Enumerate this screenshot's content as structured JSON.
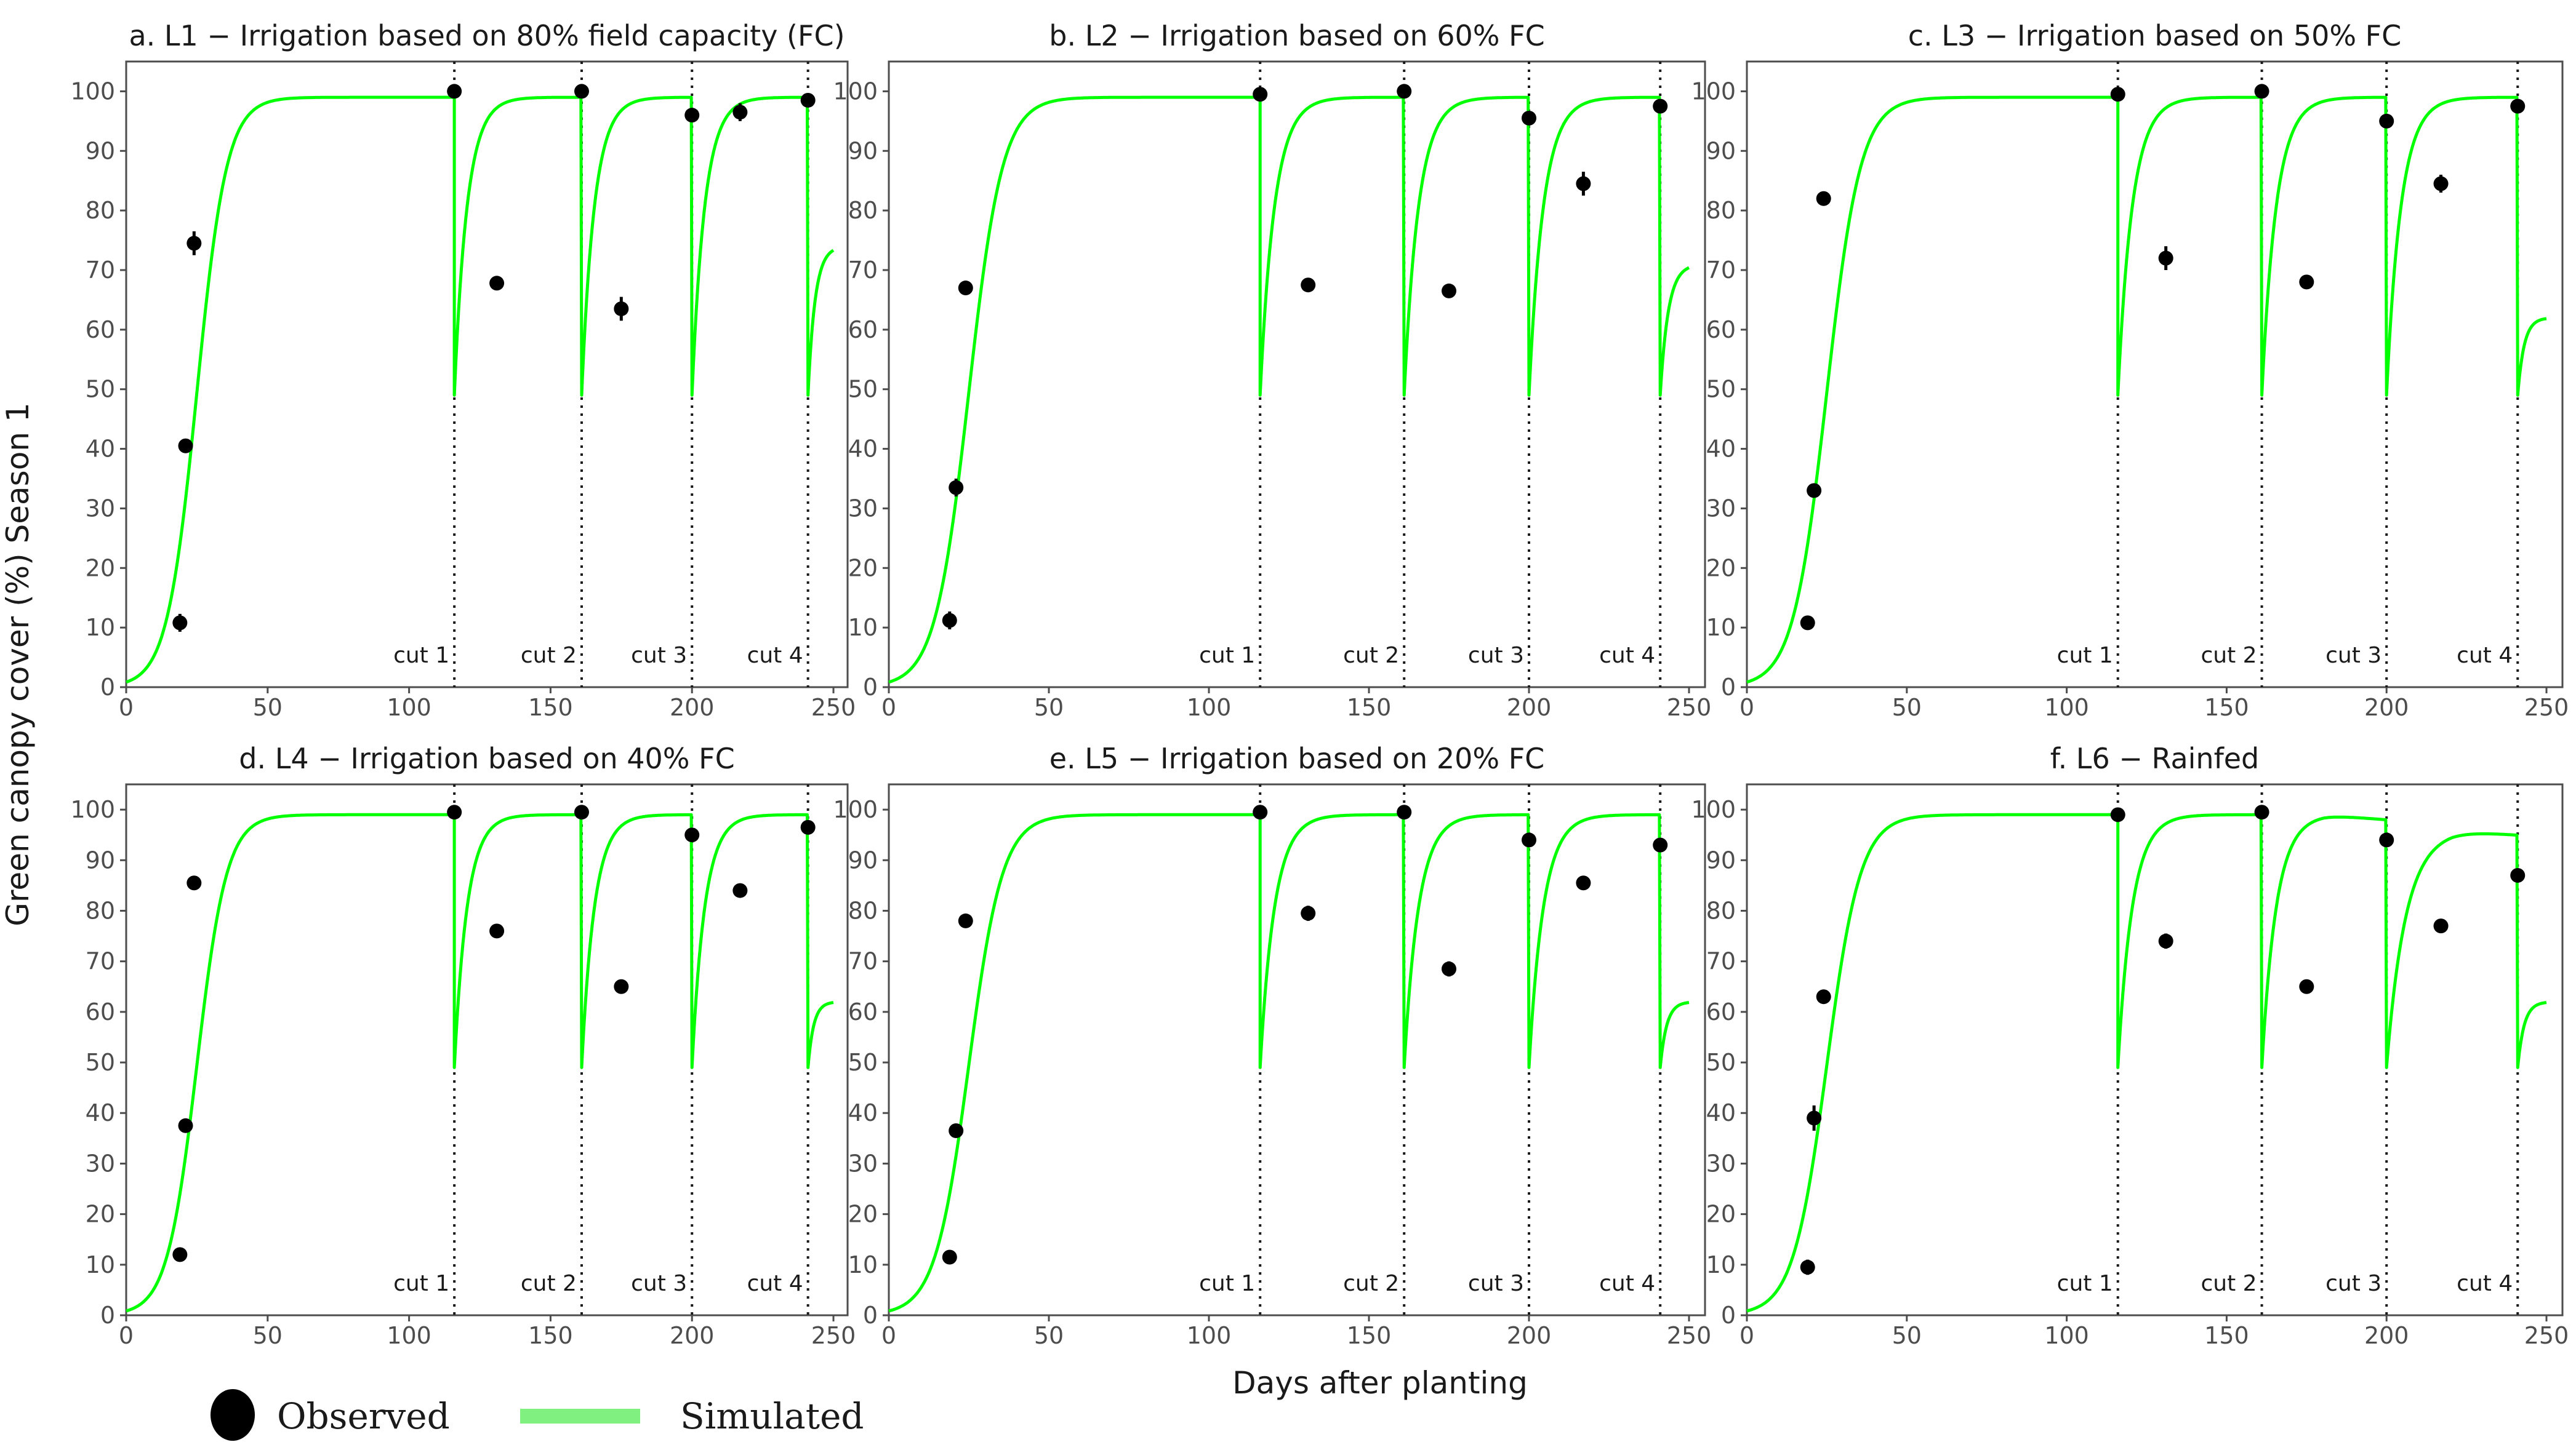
{
  "figure": {
    "ylabel": "Green canopy cover (%) Season 1",
    "xlabel": "Days after planting",
    "legend": {
      "observed_label": "Observed",
      "simulated_label": "Simulated"
    },
    "colors": {
      "simulated": "#00ff00",
      "observed": "#000000",
      "panel_border": "#4d4d4d",
      "legend_simulated": "#80f080"
    }
  },
  "chart_data": [
    {
      "type": "line+scatter",
      "title": "a. L1 − Irrigation based on 80% field capacity (FC)",
      "xlim": [
        0,
        255
      ],
      "ylim": [
        0,
        105
      ],
      "xticks": [
        0,
        50,
        100,
        150,
        200,
        250
      ],
      "yticks": [
        0,
        10,
        20,
        30,
        40,
        50,
        60,
        70,
        80,
        90,
        100
      ],
      "cuts": [
        {
          "x": 116,
          "label": "cut 1"
        },
        {
          "x": 161,
          "label": "cut 2"
        },
        {
          "x": 200,
          "label": "cut 3"
        },
        {
          "x": 241,
          "label": "cut 4"
        }
      ],
      "observed": [
        {
          "x": 19,
          "y": 10.8,
          "err": 1.5
        },
        {
          "x": 21,
          "y": 40.5,
          "err": 1.0
        },
        {
          "x": 24,
          "y": 74.5,
          "err": 2.0
        },
        {
          "x": 116,
          "y": 100,
          "err": 0.5
        },
        {
          "x": 131,
          "y": 67.8,
          "err": 0.5
        },
        {
          "x": 161,
          "y": 100,
          "err": 0.5
        },
        {
          "x": 175,
          "y": 63.5,
          "err": 2.0
        },
        {
          "x": 200,
          "y": 96,
          "err": 0.5
        },
        {
          "x": 217,
          "y": 96.5,
          "err": 1.5
        },
        {
          "x": 241,
          "y": 98.5,
          "err": 0.5
        }
      ],
      "simulated": {
        "initial": {
          "max": 99,
          "midpoint": 25,
          "rate": 0.19
        },
        "regrowth": [
          {
            "start": 116,
            "end": 161,
            "min": 49,
            "max": 99,
            "tau": 4.5
          },
          {
            "start": 161,
            "end": 200,
            "min": 49,
            "max": 99,
            "tau": 4.5
          },
          {
            "start": 200,
            "end": 241,
            "min": 49,
            "max": 99,
            "tau": 4.5
          },
          {
            "start": 241,
            "end": 250,
            "min": 49,
            "max": 74,
            "tau": 2.5
          }
        ]
      }
    },
    {
      "type": "line+scatter",
      "title": "b. L2 − Irrigation based on 60% FC",
      "xlim": [
        0,
        255
      ],
      "ylim": [
        0,
        105
      ],
      "xticks": [
        0,
        50,
        100,
        150,
        200,
        250
      ],
      "yticks": [
        0,
        10,
        20,
        30,
        40,
        50,
        60,
        70,
        80,
        90,
        100
      ],
      "cuts": [
        {
          "x": 116,
          "label": "cut 1"
        },
        {
          "x": 161,
          "label": "cut 2"
        },
        {
          "x": 200,
          "label": "cut 3"
        },
        {
          "x": 241,
          "label": "cut 4"
        }
      ],
      "observed": [
        {
          "x": 19,
          "y": 11.2,
          "err": 1.5
        },
        {
          "x": 21,
          "y": 33.5,
          "err": 1.5
        },
        {
          "x": 24,
          "y": 67,
          "err": 0.5
        },
        {
          "x": 116,
          "y": 99.5,
          "err": 1.0
        },
        {
          "x": 131,
          "y": 67.5,
          "err": 1.0
        },
        {
          "x": 161,
          "y": 100,
          "err": 0.5
        },
        {
          "x": 175,
          "y": 66.5,
          "err": 0.5
        },
        {
          "x": 200,
          "y": 95.5,
          "err": 1.0
        },
        {
          "x": 217,
          "y": 84.5,
          "err": 2.0
        },
        {
          "x": 241,
          "y": 97.5,
          "err": 1.0
        }
      ],
      "simulated": {
        "initial": {
          "max": 99,
          "midpoint": 25,
          "rate": 0.19
        },
        "regrowth": [
          {
            "start": 116,
            "end": 161,
            "min": 49,
            "max": 99,
            "tau": 4.5
          },
          {
            "start": 161,
            "end": 200,
            "min": 49,
            "max": 99,
            "tau": 4.5
          },
          {
            "start": 200,
            "end": 241,
            "min": 49,
            "max": 99,
            "tau": 4.5
          },
          {
            "start": 241,
            "end": 250,
            "min": 49,
            "max": 71,
            "tau": 2.5
          }
        ]
      }
    },
    {
      "type": "line+scatter",
      "title": "c. L3 − Irrigation based on 50% FC",
      "xlim": [
        0,
        255
      ],
      "ylim": [
        0,
        105
      ],
      "xticks": [
        0,
        50,
        100,
        150,
        200,
        250
      ],
      "yticks": [
        0,
        10,
        20,
        30,
        40,
        50,
        60,
        70,
        80,
        90,
        100
      ],
      "cuts": [
        {
          "x": 116,
          "label": "cut 1"
        },
        {
          "x": 161,
          "label": "cut 2"
        },
        {
          "x": 200,
          "label": "cut 3"
        },
        {
          "x": 241,
          "label": "cut 4"
        }
      ],
      "observed": [
        {
          "x": 19,
          "y": 10.8,
          "err": 0.5
        },
        {
          "x": 21,
          "y": 33,
          "err": 0.5
        },
        {
          "x": 24,
          "y": 82,
          "err": 1.0
        },
        {
          "x": 116,
          "y": 99.5,
          "err": 1.0
        },
        {
          "x": 131,
          "y": 72,
          "err": 2.0
        },
        {
          "x": 161,
          "y": 100,
          "err": 0.5
        },
        {
          "x": 175,
          "y": 68,
          "err": 0.5
        },
        {
          "x": 200,
          "y": 95,
          "err": 0.5
        },
        {
          "x": 217,
          "y": 84.5,
          "err": 1.5
        },
        {
          "x": 241,
          "y": 97.5,
          "err": 1.0
        }
      ],
      "simulated": {
        "initial": {
          "max": 99,
          "midpoint": 25,
          "rate": 0.19
        },
        "regrowth": [
          {
            "start": 116,
            "end": 161,
            "min": 49,
            "max": 99,
            "tau": 4.5
          },
          {
            "start": 161,
            "end": 200,
            "min": 49,
            "max": 99,
            "tau": 4.5
          },
          {
            "start": 200,
            "end": 241,
            "min": 49,
            "max": 99,
            "tau": 4.5
          },
          {
            "start": 241,
            "end": 250,
            "min": 49,
            "max": 62,
            "tau": 2.0
          }
        ]
      }
    },
    {
      "type": "line+scatter",
      "title": "d. L4 − Irrigation based on 40% FC",
      "xlim": [
        0,
        255
      ],
      "ylim": [
        0,
        105
      ],
      "xticks": [
        0,
        50,
        100,
        150,
        200,
        250
      ],
      "yticks": [
        0,
        10,
        20,
        30,
        40,
        50,
        60,
        70,
        80,
        90,
        100
      ],
      "cuts": [
        {
          "x": 116,
          "label": "cut 1"
        },
        {
          "x": 161,
          "label": "cut 2"
        },
        {
          "x": 200,
          "label": "cut 3"
        },
        {
          "x": 241,
          "label": "cut 4"
        }
      ],
      "observed": [
        {
          "x": 19,
          "y": 12,
          "err": 1.0
        },
        {
          "x": 21,
          "y": 37.5,
          "err": 0.5
        },
        {
          "x": 24,
          "y": 85.5,
          "err": 0.5
        },
        {
          "x": 116,
          "y": 99.5,
          "err": 0.5
        },
        {
          "x": 131,
          "y": 76,
          "err": 1.0
        },
        {
          "x": 161,
          "y": 99.5,
          "err": 0.5
        },
        {
          "x": 175,
          "y": 65,
          "err": 0.5
        },
        {
          "x": 200,
          "y": 95,
          "err": 0.5
        },
        {
          "x": 217,
          "y": 84,
          "err": 0.5
        },
        {
          "x": 241,
          "y": 96.5,
          "err": 1.0
        }
      ],
      "simulated": {
        "initial": {
          "max": 99,
          "midpoint": 25,
          "rate": 0.19
        },
        "regrowth": [
          {
            "start": 116,
            "end": 161,
            "min": 49,
            "max": 99,
            "tau": 4.5
          },
          {
            "start": 161,
            "end": 200,
            "min": 49,
            "max": 99,
            "tau": 4.5
          },
          {
            "start": 200,
            "end": 241,
            "min": 49,
            "max": 99,
            "tau": 4.5
          },
          {
            "start": 241,
            "end": 250,
            "min": 49,
            "max": 62,
            "tau": 2.0
          }
        ]
      }
    },
    {
      "type": "line+scatter",
      "title": "e. L5 − Irrigation based on 20% FC",
      "xlim": [
        0,
        255
      ],
      "ylim": [
        0,
        105
      ],
      "xticks": [
        0,
        50,
        100,
        150,
        200,
        250
      ],
      "yticks": [
        0,
        10,
        20,
        30,
        40,
        50,
        60,
        70,
        80,
        90,
        100
      ],
      "cuts": [
        {
          "x": 116,
          "label": "cut 1"
        },
        {
          "x": 161,
          "label": "cut 2"
        },
        {
          "x": 200,
          "label": "cut 3"
        },
        {
          "x": 241,
          "label": "cut 4"
        }
      ],
      "observed": [
        {
          "x": 19,
          "y": 11.5,
          "err": 0.5
        },
        {
          "x": 21,
          "y": 36.5,
          "err": 0.5
        },
        {
          "x": 24,
          "y": 78,
          "err": 0.5
        },
        {
          "x": 116,
          "y": 99.5,
          "err": 1.0
        },
        {
          "x": 131,
          "y": 79.5,
          "err": 1.5
        },
        {
          "x": 161,
          "y": 99.5,
          "err": 0.5
        },
        {
          "x": 175,
          "y": 68.5,
          "err": 1.5
        },
        {
          "x": 200,
          "y": 94,
          "err": 1.0
        },
        {
          "x": 217,
          "y": 85.5,
          "err": 0.5
        },
        {
          "x": 241,
          "y": 93,
          "err": 1.0
        }
      ],
      "simulated": {
        "initial": {
          "max": 99,
          "midpoint": 25,
          "rate": 0.19
        },
        "regrowth": [
          {
            "start": 116,
            "end": 161,
            "min": 49,
            "max": 99,
            "tau": 4.5
          },
          {
            "start": 161,
            "end": 200,
            "min": 49,
            "max": 99,
            "tau": 4.5
          },
          {
            "start": 200,
            "end": 241,
            "min": 49,
            "max": 99,
            "tau": 4.5
          },
          {
            "start": 241,
            "end": 250,
            "min": 49,
            "max": 62,
            "tau": 2.0
          }
        ]
      }
    },
    {
      "type": "line+scatter",
      "title": "f. L6 − Rainfed",
      "xlim": [
        0,
        255
      ],
      "ylim": [
        0,
        105
      ],
      "xticks": [
        0,
        50,
        100,
        150,
        200,
        250
      ],
      "yticks": [
        0,
        10,
        20,
        30,
        40,
        50,
        60,
        70,
        80,
        90,
        100
      ],
      "cuts": [
        {
          "x": 116,
          "label": "cut 1"
        },
        {
          "x": 161,
          "label": "cut 2"
        },
        {
          "x": 200,
          "label": "cut 3"
        },
        {
          "x": 241,
          "label": "cut 4"
        }
      ],
      "observed": [
        {
          "x": 19,
          "y": 9.5,
          "err": 1.5
        },
        {
          "x": 21,
          "y": 39,
          "err": 2.5
        },
        {
          "x": 24,
          "y": 63,
          "err": 1.0
        },
        {
          "x": 116,
          "y": 99,
          "err": 0.5
        },
        {
          "x": 131,
          "y": 74,
          "err": 1.5
        },
        {
          "x": 161,
          "y": 99.5,
          "err": 0.5
        },
        {
          "x": 175,
          "y": 65,
          "err": 0.5
        },
        {
          "x": 200,
          "y": 94,
          "err": 0.5
        },
        {
          "x": 217,
          "y": 77,
          "err": 0.5
        },
        {
          "x": 241,
          "y": 87,
          "err": 1.0
        }
      ],
      "simulated": {
        "initial": {
          "max": 99,
          "midpoint": 25,
          "rate": 0.19
        },
        "regrowth": [
          {
            "start": 116,
            "end": 161,
            "min": 49,
            "max": 99,
            "tau": 4.5
          },
          {
            "start": 161,
            "end": 200,
            "min": 49,
            "max": 99,
            "tau": 4.5,
            "decline_to": 98
          },
          {
            "start": 200,
            "end": 241,
            "min": 49,
            "max": 96,
            "tau": 6,
            "decline_to": 95
          },
          {
            "start": 241,
            "end": 250,
            "min": 49,
            "max": 62,
            "tau": 2.0
          }
        ]
      }
    }
  ]
}
